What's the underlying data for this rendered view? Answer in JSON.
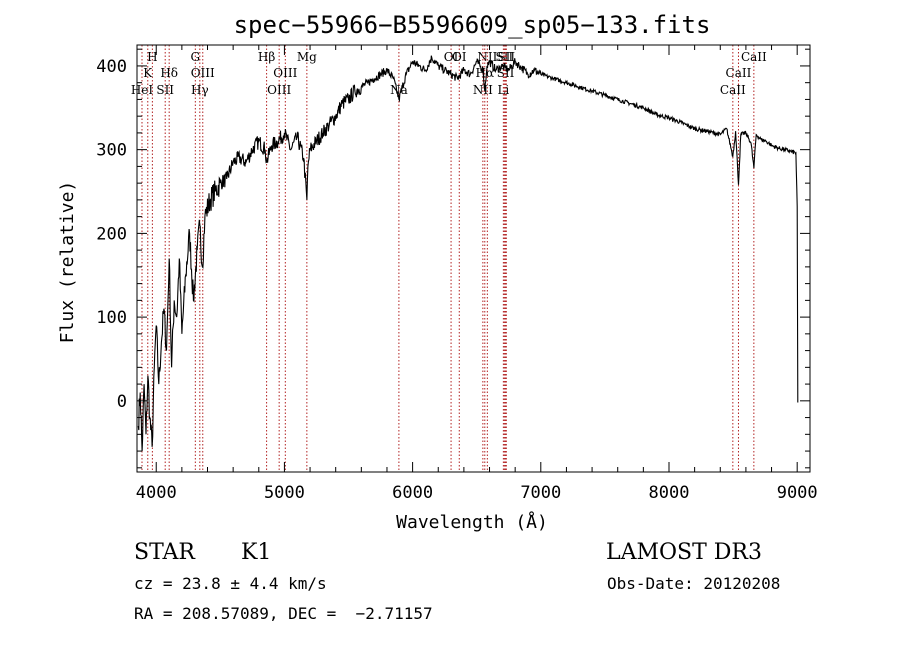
{
  "chart_data": {
    "type": "line",
    "title": "spec−55966−B5596609_sp05−133.fits",
    "xlabel": "Wavelength (Å)",
    "ylabel": "Flux (relative)",
    "xlim": [
      3850,
      9100
    ],
    "ylim": [
      -85,
      425
    ],
    "xticks": [
      4000,
      5000,
      6000,
      7000,
      8000,
      9000
    ],
    "yticks": [
      0,
      100,
      200,
      300,
      400
    ],
    "minor_x_step": 200,
    "minor_y_step": 20,
    "grid": false,
    "series": [
      {
        "name": "flux",
        "x": [
          3860,
          3875,
          3890,
          3905,
          3920,
          3935,
          3950,
          3968,
          3985,
          4000,
          4020,
          4040,
          4060,
          4080,
          4101,
          4120,
          4140,
          4160,
          4180,
          4200,
          4230,
          4260,
          4290,
          4320,
          4340,
          4360,
          4380,
          4420,
          4460,
          4500,
          4550,
          4600,
          4650,
          4700,
          4750,
          4800,
          4850,
          4861,
          4900,
          4950,
          5000,
          5050,
          5100,
          5150,
          5175,
          5183,
          5200,
          5250,
          5300,
          5350,
          5400,
          5450,
          5500,
          5550,
          5600,
          5650,
          5700,
          5750,
          5800,
          5850,
          5893,
          5920,
          5950,
          6000,
          6050,
          6100,
          6150,
          6200,
          6250,
          6300,
          6350,
          6400,
          6450,
          6500,
          6550,
          6563,
          6580,
          6600,
          6650,
          6700,
          6750,
          6800,
          6850,
          6900,
          6950,
          7000,
          7100,
          7200,
          7300,
          7400,
          7500,
          7600,
          7700,
          7800,
          7900,
          8000,
          8100,
          8200,
          8300,
          8400,
          8450,
          8498,
          8520,
          8542,
          8560,
          8600,
          8640,
          8662,
          8680,
          8720,
          8760,
          8800,
          8850,
          8900,
          8950,
          8990,
          9000,
          9005
        ],
        "values": [
          -30,
          10,
          -60,
          20,
          -40,
          30,
          -20,
          -55,
          40,
          90,
          20,
          70,
          110,
          60,
          170,
          40,
          120,
          100,
          170,
          80,
          150,
          200,
          120,
          180,
          210,
          160,
          220,
          240,
          250,
          260,
          265,
          285,
          290,
          285,
          300,
          310,
          300,
          285,
          305,
          310,
          320,
          300,
          315,
          290,
          240,
          280,
          300,
          310,
          320,
          330,
          340,
          355,
          360,
          370,
          375,
          380,
          385,
          390,
          395,
          385,
          360,
          375,
          390,
          405,
          400,
          395,
          410,
          400,
          395,
          390,
          385,
          395,
          390,
          405,
          395,
          370,
          400,
          405,
          395,
          400,
          395,
          405,
          398,
          390,
          395,
          390,
          385,
          380,
          375,
          370,
          365,
          360,
          355,
          350,
          342,
          338,
          332,
          325,
          322,
          318,
          325,
          292,
          322,
          258,
          318,
          320,
          308,
          278,
          318,
          312,
          310,
          305,
          302,
          300,
          298,
          296,
          232,
          -2
        ]
      }
    ],
    "spectral_lines": [
      {
        "label": "H",
        "x": 3970,
        "row": 0
      },
      {
        "label": "K",
        "x": 3934,
        "row": 1
      },
      {
        "label": "HeI",
        "x": 3889,
        "row": 2
      },
      {
        "label": "SII",
        "x": 4070,
        "row": 2
      },
      {
        "label": "Hδ",
        "x": 4101,
        "row": 1
      },
      {
        "label": "G",
        "x": 4305,
        "row": 0
      },
      {
        "label": "OIII",
        "x": 4363,
        "row": 1
      },
      {
        "label": "Hγ",
        "x": 4340,
        "row": 2
      },
      {
        "label": "Hβ",
        "x": 4861,
        "row": 0
      },
      {
        "label": "OIII",
        "x": 5007,
        "row": 1
      },
      {
        "label": "OIII",
        "x": 4959,
        "row": 2
      },
      {
        "label": "Mg",
        "x": 5175,
        "row": 0
      },
      {
        "label": "Na",
        "x": 5893,
        "row": 2
      },
      {
        "label": "OI",
        "x": 6300,
        "row": 0
      },
      {
        "label": "OI",
        "x": 6364,
        "row": 0
      },
      {
        "label": "NII",
        "x": 6583,
        "row": 0
      },
      {
        "label": "SII",
        "x": 6716,
        "row": 0
      },
      {
        "label": "SII",
        "x": 6731,
        "row": 0
      },
      {
        "label": "Hα",
        "x": 6563,
        "row": 1
      },
      {
        "label": "SII",
        "x": 6725,
        "row": 1
      },
      {
        "label": "NII",
        "x": 6548,
        "row": 2
      },
      {
        "label": "Li",
        "x": 6708,
        "row": 2
      },
      {
        "label": "CaII",
        "x": 8662,
        "row": 0
      },
      {
        "label": "CaII",
        "x": 8542,
        "row": 1
      },
      {
        "label": "CaII",
        "x": 8498,
        "row": 2
      }
    ]
  },
  "info": {
    "class_label": "STAR",
    "subclass": "K1",
    "survey": "LAMOST DR3",
    "cz": "cz = 23.8 ± 4.4 km/s",
    "obs_date": "Obs-Date: 20120208",
    "radec": "RA = 208.57089, DEC =  −2.71157"
  },
  "colors": {
    "line_marker": "#b22222",
    "flux": "#000000"
  }
}
